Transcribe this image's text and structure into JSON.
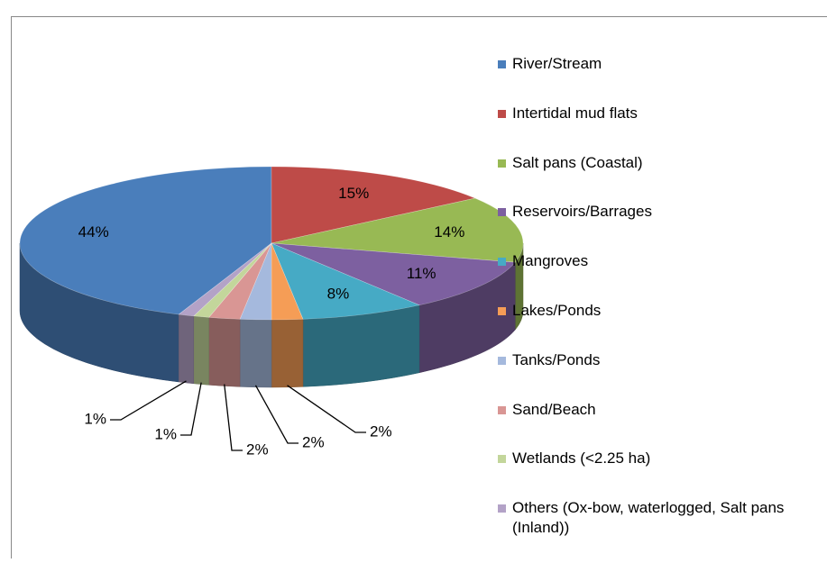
{
  "chart_data": {
    "type": "pie",
    "categories": [
      "River/Stream",
      "Intertidal mud flats",
      "Salt pans (Coastal)",
      "Reservoirs/Barrages",
      "Mangroves",
      "Lakes/Ponds",
      "Tanks/Ponds",
      "Sand/Beach",
      "Wetlands (<2.25 ha)",
      "Others (Ox-bow, waterlogged, Salt pans (Inland))"
    ],
    "values": [
      44,
      15,
      14,
      11,
      8,
      2,
      2,
      2,
      1,
      1
    ],
    "value_labels": [
      "44%",
      "15%",
      "14%",
      "11%",
      "8%",
      "2%",
      "2%",
      "2%",
      "1%",
      "1%"
    ],
    "colors": [
      "#4a7ebb",
      "#be4b48",
      "#98b954",
      "#7d60a0",
      "#46aac5",
      "#f59d56",
      "#a5b9dd",
      "#d99694",
      "#c3d69b",
      "#b3a2c7"
    ],
    "legend": "right"
  }
}
